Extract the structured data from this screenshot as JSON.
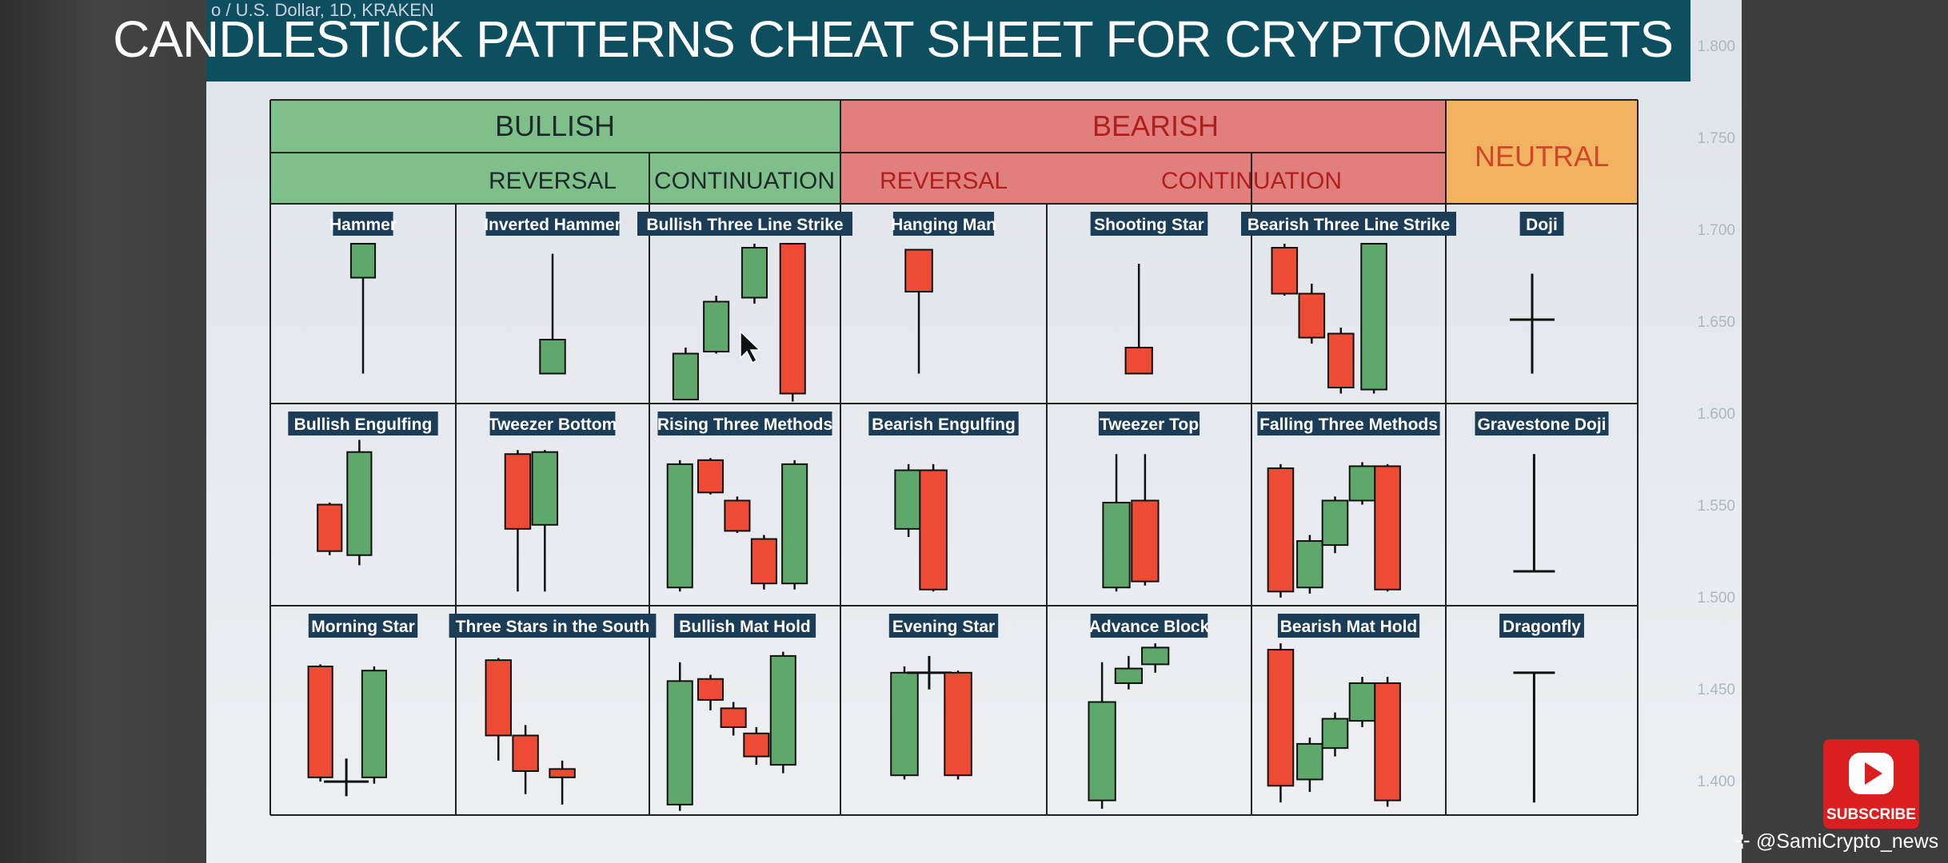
{
  "chart_meta": "o / U.S. Dollar, 1D, KRAKEN",
  "title": "CANDLESTICK PATTERNS CHEAT SHEET FOR CRYPTOMARKETS",
  "axis_labels": [
    "1.800",
    "1.750",
    "1.700",
    "1.650",
    "1.600",
    "1.550",
    "1.500",
    "1.450",
    "1.400"
  ],
  "headers": {
    "bullish": "BULLISH",
    "bearish": "BEARISH",
    "neutral": "NEUTRAL",
    "reversal": "REVERSAL",
    "continuation": "CONTINUATION"
  },
  "colors": {
    "bull": "#5fa86c",
    "bear": "#ee4b35",
    "header_bull": "#7fc08a",
    "header_bear": "#e07f7c",
    "header_neutral": "#f2b360",
    "banner": "#0e4f5f",
    "label_bg": "#1c3d57"
  },
  "patterns": [
    {
      "name": "Hammer",
      "candles": [
        [
          0.5,
          "g",
          0.2,
          0.85,
          0.2,
          0.37
        ]
      ]
    },
    {
      "name": "Inverted Hammer",
      "candles": [
        [
          0.5,
          "g",
          0.25,
          0.85,
          0.68,
          0.85
        ]
      ]
    },
    {
      "name": "Bullish Three Line Strike",
      "candles": [
        [
          0.19,
          "g",
          0.72,
          0.98,
          0.75,
          0.98
        ],
        [
          0.35,
          "g",
          0.46,
          0.75,
          0.49,
          0.74
        ],
        [
          0.55,
          "g",
          0.2,
          0.5,
          0.22,
          0.47
        ],
        [
          0.75,
          "r",
          0.2,
          0.99,
          0.2,
          0.95
        ]
      ]
    },
    {
      "name": "Hanging Man",
      "candles": [
        [
          0.38,
          "r",
          0.23,
          0.85,
          0.23,
          0.44
        ]
      ]
    },
    {
      "name": "Shooting Star",
      "candles": [
        [
          0.45,
          "r",
          0.3,
          0.85,
          0.72,
          0.85
        ]
      ]
    },
    {
      "name": "Bearish Three Line Strike",
      "candles": [
        [
          0.17,
          "r",
          0.2,
          0.46,
          0.22,
          0.45
        ],
        [
          0.31,
          "r",
          0.4,
          0.7,
          0.45,
          0.67
        ],
        [
          0.46,
          "r",
          0.62,
          0.95,
          0.65,
          0.92
        ],
        [
          0.63,
          "g",
          0.2,
          0.95,
          0.2,
          0.93
        ]
      ]
    },
    {
      "name": "Doji",
      "candles": [
        [
          0.45,
          "d",
          0.35,
          0.85,
          0.58,
          0.58
        ]
      ]
    },
    {
      "name": "Bullish Engulfing",
      "candles": [
        [
          0.32,
          "r",
          0.49,
          0.75,
          0.5,
          0.73
        ],
        [
          0.48,
          "g",
          0.18,
          0.8,
          0.24,
          0.75
        ]
      ]
    },
    {
      "name": "Tweezer Bottom",
      "candles": [
        [
          0.32,
          "r",
          0.23,
          0.93,
          0.25,
          0.62
        ],
        [
          0.46,
          "g",
          0.23,
          0.93,
          0.24,
          0.6
        ]
      ]
    },
    {
      "name": "Rising Three Methods",
      "candles": [
        [
          0.16,
          "g",
          0.28,
          0.93,
          0.3,
          0.91
        ],
        [
          0.32,
          "r",
          0.27,
          0.45,
          0.28,
          0.44
        ],
        [
          0.46,
          "r",
          0.46,
          0.64,
          0.48,
          0.63
        ],
        [
          0.6,
          "r",
          0.65,
          0.92,
          0.67,
          0.89
        ],
        [
          0.76,
          "g",
          0.28,
          0.92,
          0.3,
          0.89
        ]
      ]
    },
    {
      "name": "Bearish Engulfing",
      "candles": [
        [
          0.33,
          "g",
          0.3,
          0.66,
          0.33,
          0.62
        ],
        [
          0.45,
          "r",
          0.3,
          0.93,
          0.33,
          0.92
        ]
      ]
    },
    {
      "name": "Tweezer Top",
      "candles": [
        [
          0.34,
          "g",
          0.25,
          0.93,
          0.49,
          0.91
        ],
        [
          0.48,
          "r",
          0.25,
          0.9,
          0.48,
          0.88
        ]
      ]
    },
    {
      "name": "Falling Three Methods",
      "candles": [
        [
          0.15,
          "r",
          0.3,
          0.96,
          0.32,
          0.93
        ],
        [
          0.3,
          "g",
          0.65,
          0.94,
          0.68,
          0.91
        ],
        [
          0.43,
          "g",
          0.46,
          0.74,
          0.48,
          0.7
        ],
        [
          0.57,
          "g",
          0.29,
          0.5,
          0.31,
          0.48
        ],
        [
          0.7,
          "r",
          0.3,
          0.93,
          0.31,
          0.92
        ]
      ]
    },
    {
      "name": "Gravestone Doji",
      "candles": [
        [
          0.46,
          "gs",
          0.25,
          0.83,
          0.83,
          0.83
        ]
      ]
    },
    {
      "name": "Morning Star",
      "candles": [
        [
          0.27,
          "r",
          0.28,
          0.84,
          0.29,
          0.82
        ],
        [
          0.41,
          "d",
          0.73,
          0.91,
          0.84,
          0.84
        ],
        [
          0.56,
          "g",
          0.29,
          0.85,
          0.31,
          0.82
        ]
      ]
    },
    {
      "name": "Three Stars in the South",
      "candles": [
        [
          0.22,
          "r",
          0.25,
          0.74,
          0.26,
          0.62
        ],
        [
          0.36,
          "r",
          0.57,
          0.9,
          0.62,
          0.79
        ],
        [
          0.55,
          "r",
          0.74,
          0.95,
          0.78,
          0.82
        ]
      ]
    },
    {
      "name": "Bullish Mat Hold",
      "candles": [
        [
          0.16,
          "g",
          0.27,
          0.98,
          0.36,
          0.95
        ],
        [
          0.32,
          "r",
          0.33,
          0.5,
          0.35,
          0.45
        ],
        [
          0.44,
          "r",
          0.46,
          0.62,
          0.49,
          0.58
        ],
        [
          0.56,
          "r",
          0.58,
          0.76,
          0.61,
          0.72
        ],
        [
          0.7,
          "g",
          0.22,
          0.8,
          0.24,
          0.76
        ]
      ]
    },
    {
      "name": "Evening Star",
      "candles": [
        [
          0.31,
          "g",
          0.29,
          0.83,
          0.32,
          0.81
        ],
        [
          0.43,
          "d",
          0.24,
          0.4,
          0.32,
          0.32
        ],
        [
          0.57,
          "r",
          0.31,
          0.83,
          0.32,
          0.81
        ]
      ]
    },
    {
      "name": "Advance Block",
      "candles": [
        [
          0.27,
          "g",
          0.27,
          0.97,
          0.46,
          0.93
        ],
        [
          0.4,
          "g",
          0.24,
          0.4,
          0.3,
          0.37
        ],
        [
          0.53,
          "g",
          0.18,
          0.32,
          0.2,
          0.28
        ]
      ]
    },
    {
      "name": "Bearish Mat Hold",
      "candles": [
        [
          0.15,
          "r",
          0.18,
          0.94,
          0.21,
          0.86
        ],
        [
          0.3,
          "g",
          0.63,
          0.89,
          0.66,
          0.83
        ],
        [
          0.43,
          "g",
          0.51,
          0.72,
          0.54,
          0.68
        ],
        [
          0.57,
          "g",
          0.34,
          0.58,
          0.37,
          0.55
        ],
        [
          0.7,
          "r",
          0.34,
          0.96,
          0.37,
          0.93
        ]
      ]
    },
    {
      "name": "Dragonfly",
      "candles": [
        [
          0.46,
          "df",
          0.32,
          0.94,
          0.32,
          0.32
        ]
      ]
    }
  ],
  "subscribe": "SUBSCRIBE",
  "credit": "@SamiCrypto_news"
}
